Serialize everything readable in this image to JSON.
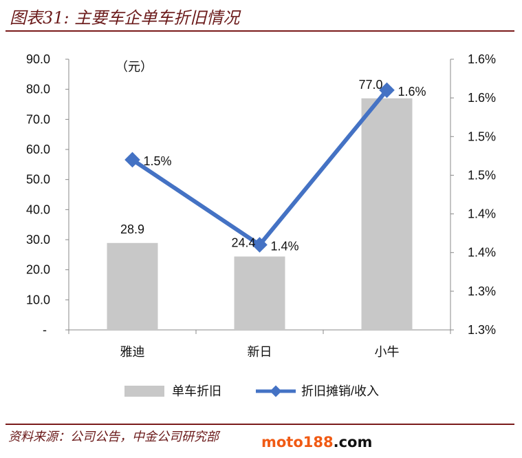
{
  "header": {
    "title": "图表31: 主要车企单车折旧情况"
  },
  "footer": {
    "source": "资料来源：公司公告，中金公司研究部",
    "watermark_a": "moto188",
    "watermark_b": ".com"
  },
  "chart_data": {
    "type": "bar+line",
    "title": "图表31: 主要车企单车折旧情况",
    "categories": [
      "雅迪",
      "新日",
      "小牛"
    ],
    "unit_label": "（元）",
    "series": [
      {
        "name": "单车折旧",
        "type": "bar",
        "axis": "left",
        "values": [
          28.9,
          24.4,
          77.0
        ],
        "labels": [
          "28.9",
          "24.4",
          "77.0"
        ],
        "color": "#c8c8c8"
      },
      {
        "name": "折旧摊销/收入",
        "type": "line",
        "axis": "right",
        "values": [
          1.47,
          1.36,
          1.56
        ],
        "labels": [
          "1.5%",
          "1.4%",
          "1.6%"
        ],
        "color": "#4472c4"
      }
    ],
    "left_axis": {
      "ylim": [
        0,
        90
      ],
      "ticks": [
        "-",
        "10.0",
        "20.0",
        "30.0",
        "40.0",
        "50.0",
        "60.0",
        "70.0",
        "80.0",
        "90.0"
      ]
    },
    "right_axis": {
      "ylim": [
        1.25,
        1.6
      ],
      "ticks": [
        "1.3%",
        "1.3%",
        "1.4%",
        "1.4%",
        "1.5%",
        "1.5%",
        "1.6%",
        "1.6%"
      ]
    },
    "grid": false,
    "legend": "bottom"
  }
}
